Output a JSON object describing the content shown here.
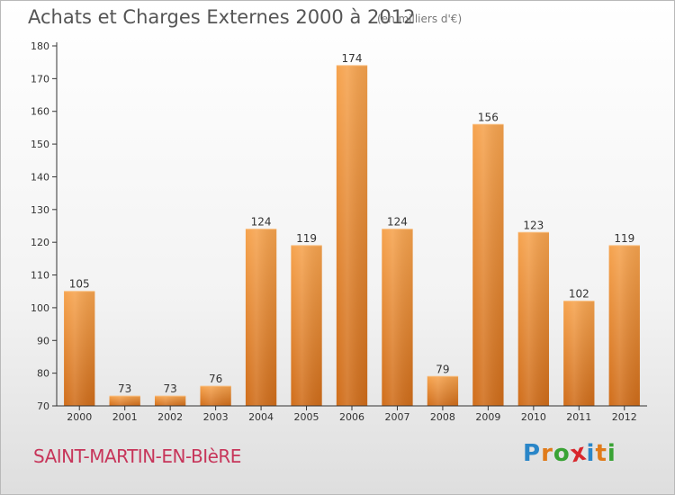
{
  "header": {
    "title": "Achats et Charges Externes 2000 à 2012",
    "subtitle": "(en milliers d'€)"
  },
  "footer": {
    "commune": "SAINT-MARTIN-EN-BIèRE",
    "logo": {
      "letters": [
        "P",
        "r",
        "o",
        "x",
        "i",
        "t",
        "i"
      ],
      "colors": [
        "#2a86c8",
        "#e07b1a",
        "#3aa335",
        "#d8262c",
        "#2a86c8",
        "#e07b1a",
        "#3aa335"
      ]
    }
  },
  "colors": {
    "bar_light": "#f6a34e",
    "bar_dark": "#d06d1a",
    "axis": "#333333",
    "grid": "#e6e6e6",
    "title": "#555555",
    "commune": "#c7355a"
  },
  "chart_data": {
    "type": "bar",
    "title": "Achats et Charges Externes 2000 à 2012",
    "subtitle": "(en milliers d'€)",
    "xlabel": "",
    "ylabel": "",
    "categories": [
      "2000",
      "2001",
      "2002",
      "2003",
      "2004",
      "2005",
      "2006",
      "2007",
      "2008",
      "2009",
      "2010",
      "2011",
      "2012"
    ],
    "values": [
      105,
      73,
      73,
      76,
      124,
      119,
      174,
      124,
      79,
      156,
      123,
      102,
      119
    ],
    "ylim": [
      70,
      180
    ],
    "yticks": [
      70,
      80,
      90,
      100,
      110,
      120,
      130,
      140,
      150,
      160,
      170,
      180
    ],
    "grid": false,
    "legend": "none"
  }
}
